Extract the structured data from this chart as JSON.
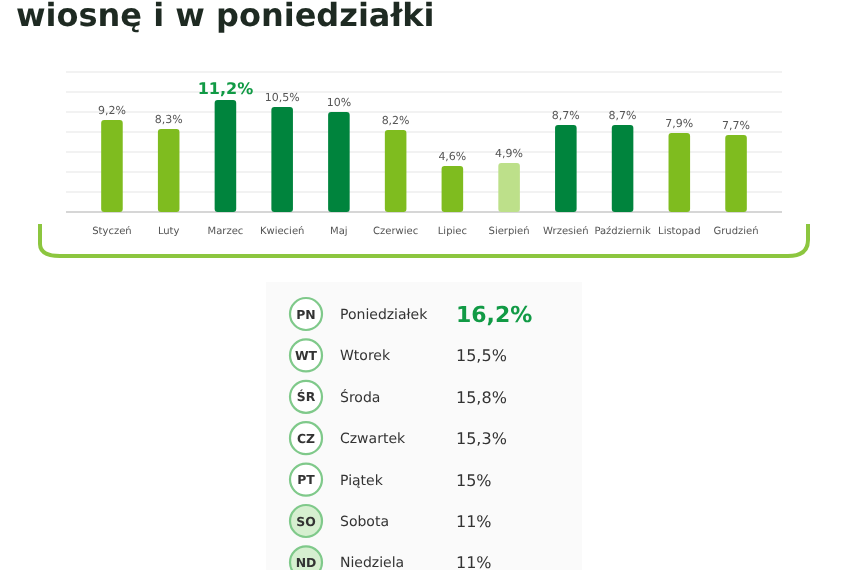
{
  "chart_data": [
    {
      "type": "bar",
      "title": "wiosnę i w poniedziałki",
      "categories": [
        "Styczeń",
        "Luty",
        "Marzec",
        "Kwiecień",
        "Maj",
        "Czerwiec",
        "Lipiec",
        "Sierpień",
        "Wrzesień",
        "Październik",
        "Listopad",
        "Grudzień"
      ],
      "values": [
        9.2,
        8.3,
        11.2,
        10.5,
        10,
        8.2,
        4.6,
        4.9,
        8.7,
        8.7,
        7.9,
        7.7
      ],
      "colors": [
        "#7fbc1f",
        "#7fbc1f",
        "#00843d",
        "#00843d",
        "#00843d",
        "#7fbc1f",
        "#7fbc1f",
        "#bde08a",
        "#00843d",
        "#00843d",
        "#7fbc1f",
        "#7fbc1f"
      ],
      "value_labels": [
        "9,2%",
        "8,3%",
        "11,2%",
        "10,5%",
        "10%",
        "8,2%",
        "4,6%",
        "4,9%",
        "8,7%",
        "8,7%",
        "7,9%",
        "7,7%"
      ],
      "grid": true
    },
    {
      "type": "other",
      "categories": [
        "Poniedziałek",
        "Wtorek",
        "Środa",
        "Czwartek",
        "Piątek",
        "Sobota",
        "Niedziela"
      ],
      "y_categories": [
        "PN",
        "WT",
        "ŚR",
        "CZ",
        "PT",
        "SO",
        "ND"
      ],
      "values": [
        16.2,
        15.5,
        15.8,
        15.3,
        15,
        11,
        11
      ],
      "value_labels": [
        "16,2%",
        "15,5%",
        "15,8%",
        "15,3%",
        "15%",
        "11%",
        "11%"
      ],
      "colors": [
        "#ffffff",
        "#ffffff",
        "#ffffff",
        "#ffffff",
        "#ffffff",
        "#d6efd0",
        "#d6efd0"
      ]
    }
  ]
}
